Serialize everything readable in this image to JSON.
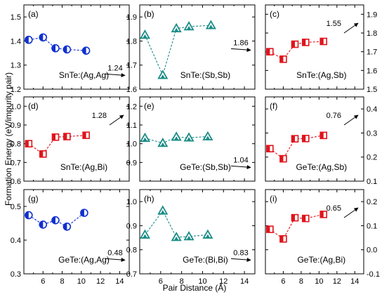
{
  "figure": {
    "xlabel": "Pair Distance (Å)",
    "ylabel": "Formation Energy (eV/impurity pair)",
    "x_ticks": [
      "6",
      "8",
      "10",
      "12",
      "14"
    ],
    "colors": {
      "blue": "#1030d0",
      "teal": "#1a8c86",
      "red": "#e0141c"
    }
  },
  "chart_data": [
    {
      "type": "line",
      "panel_label": "(a)",
      "compound": "SnTe:(Ag,Ag)",
      "marker": "circle",
      "color": "#1030d0",
      "x": [
        4.5,
        6.0,
        7.3,
        8.5,
        10.5
      ],
      "y": [
        1.405,
        1.415,
        1.37,
        1.365,
        1.36
      ],
      "xlim": [
        4,
        15
      ],
      "ylim": [
        1.2,
        1.55
      ],
      "yticks": [
        "1.2",
        "1.3",
        "1.4",
        "1.5"
      ],
      "arrow_value": "1.24",
      "arrow_dir": "flat",
      "arrow_label_pos": "above"
    },
    {
      "type": "line",
      "panel_label": "(b)",
      "compound": "SnTe:(Sb,Sb)",
      "marker": "triangle",
      "color": "#1a8c86",
      "x": [
        4.5,
        6.2,
        7.5,
        8.7,
        10.8
      ],
      "y": [
        1.825,
        1.658,
        1.852,
        1.86,
        1.865
      ],
      "xlim": [
        4,
        15
      ],
      "ylim": [
        1.6,
        1.95
      ],
      "yticks": [
        "1.6",
        "1.7",
        "1.8",
        "1.9"
      ],
      "arrow_value": "1.86",
      "arrow_dir": "flat",
      "arrow_label_pos": "above"
    },
    {
      "type": "line",
      "panel_label": "(c)",
      "compound": "SnTe:(Ag,Sb)",
      "marker": "square",
      "color": "#e0141c",
      "x": [
        4.5,
        6.0,
        7.3,
        8.5,
        10.5
      ],
      "y": [
        1.7,
        1.66,
        1.74,
        1.75,
        1.755
      ],
      "xlim": [
        4,
        15
      ],
      "ylim": [
        1.5,
        1.95
      ],
      "yticks": [],
      "arrow_value": "1.55",
      "arrow_dir": "up",
      "arrow_label_pos": "left"
    },
    {
      "type": "line",
      "panel_label": "(d)",
      "compound": "SnTe:(Ag,Bi)",
      "marker": "square",
      "color": "#e0141c",
      "x": [
        4.5,
        6.0,
        7.3,
        8.5,
        10.5
      ],
      "y": [
        0.8,
        0.745,
        0.835,
        0.838,
        0.845
      ],
      "xlim": [
        4,
        15
      ],
      "ylim": [
        0.6,
        1.05
      ],
      "yticks": [
        "0.6",
        "0.7",
        "0.8",
        "0.9",
        "1.0"
      ],
      "arrow_value": "1.28",
      "arrow_dir": "up",
      "arrow_label_pos": "left"
    },
    {
      "type": "line",
      "panel_label": "(e)",
      "compound": "GeTe:(Sb,Sb)",
      "marker": "triangle",
      "color": "#1a8c86",
      "x": [
        4.5,
        6.2,
        7.5,
        8.7,
        10.5
      ],
      "y": [
        1.03,
        1.003,
        1.036,
        1.032,
        1.038
      ],
      "xlim": [
        4,
        15
      ],
      "ylim": [
        0.8,
        1.25
      ],
      "yticks": [
        "0.9",
        "1.0",
        "1.1",
        "1.2"
      ],
      "arrow_value": "1.04",
      "arrow_dir": "flat",
      "arrow_label_pos": "above"
    },
    {
      "type": "line",
      "panel_label": "(f)",
      "compound": "GeTe:(Ag,Sb)",
      "marker": "square",
      "color": "#e0141c",
      "x": [
        4.5,
        6.0,
        7.3,
        8.5,
        10.5
      ],
      "y": [
        0.235,
        0.193,
        0.276,
        0.277,
        0.29
      ],
      "xlim": [
        4,
        15
      ],
      "ylim": [
        0.1,
        0.45
      ],
      "yticks": [],
      "arrow_value": "0.76",
      "arrow_dir": "up",
      "arrow_label_pos": "left"
    },
    {
      "type": "line",
      "panel_label": "(g)",
      "compound": "GeTe:(Ag,Ag)",
      "marker": "circle",
      "color": "#1030d0",
      "x": [
        4.5,
        6.0,
        7.3,
        8.5,
        10.3
      ],
      "y": [
        0.474,
        0.446,
        0.459,
        0.44,
        0.481
      ],
      "xlim": [
        4,
        15
      ],
      "ylim": [
        0.3,
        0.55
      ],
      "yticks": [
        "0.3",
        "0.4",
        "0.5"
      ],
      "arrow_value": "0.48",
      "arrow_dir": "flat",
      "arrow_label_pos": "above"
    },
    {
      "type": "line",
      "panel_label": "(h)",
      "compound": "GeTe:(Bi,Bi)",
      "marker": "triangle",
      "color": "#1a8c86",
      "x": [
        4.5,
        6.2,
        7.5,
        8.7,
        10.5
      ],
      "y": [
        0.862,
        0.962,
        0.852,
        0.855,
        0.862
      ],
      "xlim": [
        4,
        15
      ],
      "ylim": [
        0.7,
        1.05
      ],
      "yticks": [
        "0.7",
        "0.8",
        "0.9",
        "1.0"
      ],
      "arrow_value": "0.83",
      "arrow_dir": "flat",
      "arrow_label_pos": "above"
    },
    {
      "type": "line",
      "panel_label": "(i)",
      "compound": "GeTe:(Ag,Bi)",
      "marker": "square",
      "color": "#e0141c",
      "x": [
        4.5,
        6.0,
        7.3,
        8.5,
        10.5
      ],
      "y": [
        0.085,
        0.045,
        0.133,
        0.13,
        0.147
      ],
      "xlim": [
        4,
        15
      ],
      "ylim": [
        -0.1,
        0.25
      ],
      "yticks": [],
      "arrow_value": "0.65",
      "arrow_dir": "up",
      "arrow_label_pos": "left"
    }
  ],
  "right_axes": [
    {
      "rows": "top",
      "ticks": [
        "1.5",
        "1.6",
        "1.7",
        "1.8",
        "1.9"
      ]
    },
    {
      "rows": "middle",
      "ticks": [
        "0.1",
        "0.2",
        "0.3",
        "0.4"
      ]
    },
    {
      "rows": "bottom",
      "ticks": [
        "-0.1",
        "0.0",
        "0.1",
        "0.2"
      ]
    }
  ]
}
